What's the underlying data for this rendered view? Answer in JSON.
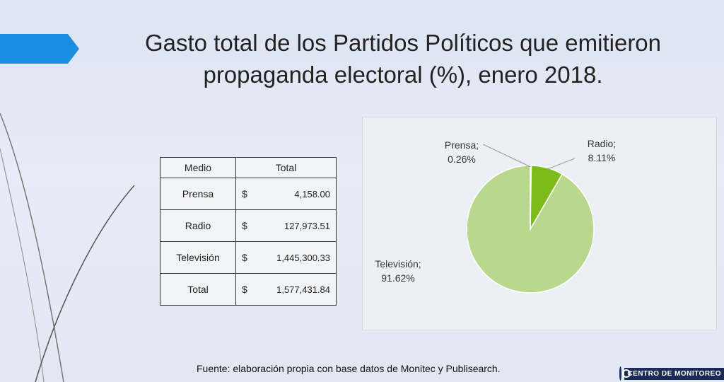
{
  "slide": {
    "title_line1": "Gasto total de los Partidos Políticos que emitieron",
    "title_line2": "propaganda electoral (%), enero 2018.",
    "source": "Fuente: elaboración propia con base datos de Monitec y Publisearch.",
    "logo_text": "CENTRO DE MONITOREO"
  },
  "table": {
    "headers": [
      "Medio",
      "Total"
    ],
    "rows": [
      {
        "medio": "Prensa",
        "currency": "$",
        "total": "4,158.00"
      },
      {
        "medio": "Radio",
        "currency": "$",
        "total": "127,973.51"
      },
      {
        "medio": "Televisión",
        "currency": "$",
        "total": "1,445,300.33"
      },
      {
        "medio": "Total",
        "currency": "$",
        "total": "1,577,431.84"
      }
    ]
  },
  "chart_data": {
    "type": "pie",
    "title": "",
    "slices": [
      {
        "label": "Prensa",
        "value": 0.26,
        "display": "0.26%",
        "color": "#5f8f1c"
      },
      {
        "label": "Radio",
        "value": 8.11,
        "display": "8.11%",
        "color": "#7dbb1a"
      },
      {
        "label": "Televisión",
        "value": 91.62,
        "display": "91.62%",
        "color": "#b9d78d"
      }
    ],
    "legend": "none",
    "label_placement": "outside"
  },
  "colors": {
    "accent_arrow": "#1a8ee0",
    "slice_border": "#ffffff"
  }
}
